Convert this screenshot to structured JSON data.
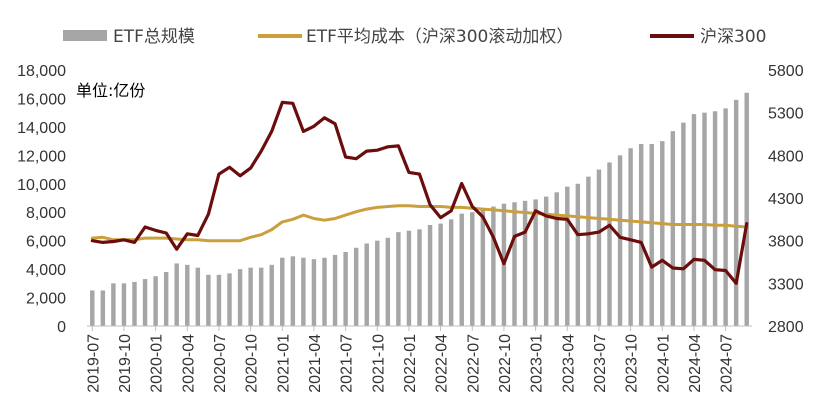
{
  "chart_data": {
    "type": "bar",
    "unit_label": "单位:亿份",
    "legend": [
      {
        "name": "ETF总规模",
        "kind": "bar"
      },
      {
        "name": "ETF平均成本（沪深300滚动加权）",
        "kind": "line"
      },
      {
        "name": "沪深300",
        "kind": "line"
      }
    ],
    "legend_position": "top",
    "grid": false,
    "x_tick_labels": [
      "2019-07",
      "2019-10",
      "2020-01",
      "2020-04",
      "2020-07",
      "2020-10",
      "2021-01",
      "2021-04",
      "2021-07",
      "2021-10",
      "2022-01",
      "2022-04",
      "2022-07",
      "2022-10",
      "2023-01",
      "2023-04",
      "2023-07",
      "2023-10",
      "2024-01",
      "2024-04",
      "2024-07"
    ],
    "categories": [
      "2019-07",
      "2019-08",
      "2019-09",
      "2019-10",
      "2019-11",
      "2019-12",
      "2020-01",
      "2020-02",
      "2020-03",
      "2020-04",
      "2020-05",
      "2020-06",
      "2020-07",
      "2020-08",
      "2020-09",
      "2020-10",
      "2020-11",
      "2020-12",
      "2021-01",
      "2021-02",
      "2021-03",
      "2021-04",
      "2021-05",
      "2021-06",
      "2021-07",
      "2021-08",
      "2021-09",
      "2021-10",
      "2021-11",
      "2021-12",
      "2022-01",
      "2022-02",
      "2022-03",
      "2022-04",
      "2022-05",
      "2022-06",
      "2022-07",
      "2022-08",
      "2022-09",
      "2022-10",
      "2022-11",
      "2022-12",
      "2023-01",
      "2023-02",
      "2023-03",
      "2023-04",
      "2023-05",
      "2023-06",
      "2023-07",
      "2023-08",
      "2023-09",
      "2023-10",
      "2023-11",
      "2023-12",
      "2024-01",
      "2024-02",
      "2024-03",
      "2024-04",
      "2024-05",
      "2024-06",
      "2024-07",
      "2024-08",
      "2024-09"
    ],
    "left_axis": {
      "min": 0,
      "max": 18000,
      "ticks": [
        "0",
        "2,000",
        "4,000",
        "6,000",
        "8,000",
        "10,000",
        "12,000",
        "14,000",
        "16,000",
        "18,000"
      ]
    },
    "right_axis": {
      "min": 2800,
      "max": 5800,
      "ticks": [
        "2800",
        "3300",
        "3800",
        "4300",
        "4800",
        "5300",
        "5800"
      ]
    },
    "series": [
      {
        "name": "ETF总规模",
        "axis": "left",
        "color": "#a6a6a6",
        "values": [
          2500,
          2500,
          3000,
          3000,
          3100,
          3300,
          3500,
          3800,
          4400,
          4300,
          4100,
          3600,
          3600,
          3700,
          4000,
          4100,
          4100,
          4300,
          4800,
          4900,
          4800,
          4700,
          4800,
          5000,
          5200,
          5500,
          5800,
          6000,
          6200,
          6600,
          6700,
          6800,
          7100,
          7200,
          7500,
          7900,
          8000,
          8200,
          8400,
          8600,
          8700,
          8800,
          8900,
          9100,
          9400,
          9800,
          10000,
          10500,
          11000,
          11500,
          12000,
          12500,
          12800,
          12800,
          13000,
          13700,
          14300,
          14900,
          15000,
          15100,
          15300,
          15900,
          16400
        ]
      },
      {
        "name": "ETF平均成本（沪深300滚动加权）",
        "axis": "right",
        "color": "#c9a03c",
        "values": [
          3830,
          3840,
          3810,
          3810,
          3810,
          3830,
          3830,
          3830,
          3820,
          3810,
          3810,
          3800,
          3800,
          3800,
          3800,
          3840,
          3870,
          3930,
          4020,
          4050,
          4100,
          4060,
          4040,
          4060,
          4100,
          4140,
          4170,
          4190,
          4200,
          4210,
          4210,
          4200,
          4200,
          4200,
          4190,
          4190,
          4180,
          4170,
          4160,
          4150,
          4140,
          4130,
          4120,
          4110,
          4100,
          4090,
          4080,
          4070,
          4060,
          4050,
          4040,
          4030,
          4020,
          4010,
          4000,
          3990,
          3990,
          3990,
          3990,
          3980,
          3980,
          3970,
          3960
        ]
      },
      {
        "name": "沪深300",
        "axis": "right",
        "color": "#6b0d0d",
        "values": [
          3800,
          3780,
          3790,
          3810,
          3780,
          3960,
          3920,
          3890,
          3700,
          3880,
          3860,
          4110,
          4580,
          4660,
          4560,
          4650,
          4850,
          5080,
          5420,
          5410,
          5080,
          5140,
          5240,
          5170,
          4780,
          4760,
          4850,
          4860,
          4900,
          4910,
          4600,
          4580,
          4220,
          4070,
          4150,
          4470,
          4200,
          4080,
          3840,
          3530,
          3850,
          3900,
          4150,
          4090,
          4060,
          4050,
          3870,
          3880,
          3900,
          3980,
          3840,
          3810,
          3780,
          3490,
          3570,
          3480,
          3470,
          3580,
          3570,
          3460,
          3450,
          3300,
          4000
        ]
      }
    ]
  }
}
